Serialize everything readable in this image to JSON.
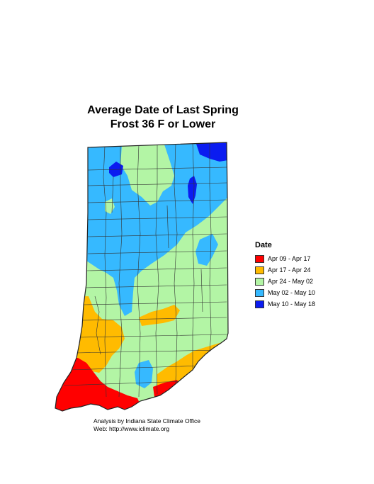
{
  "title_line1": "Average Date of Last Spring",
  "title_line2": "Frost 36 F or Lower",
  "legend": {
    "title": "Date",
    "items": [
      {
        "label": "Apr 09 - Apr 17",
        "color": "#ff0000"
      },
      {
        "label": "Apr 17 - Apr 24",
        "color": "#ffbb00"
      },
      {
        "label": "Apr 24 - May 02",
        "color": "#b3f5a5"
      },
      {
        "label": "May 02 - May 10",
        "color": "#36b9ff"
      },
      {
        "label": "May 10 - May 18",
        "color": "#0b1cf0"
      }
    ]
  },
  "credit": {
    "line1": "Analysis by Indiana State Climate Office",
    "line2": "Web:   http://www.iclimate.org"
  }
}
